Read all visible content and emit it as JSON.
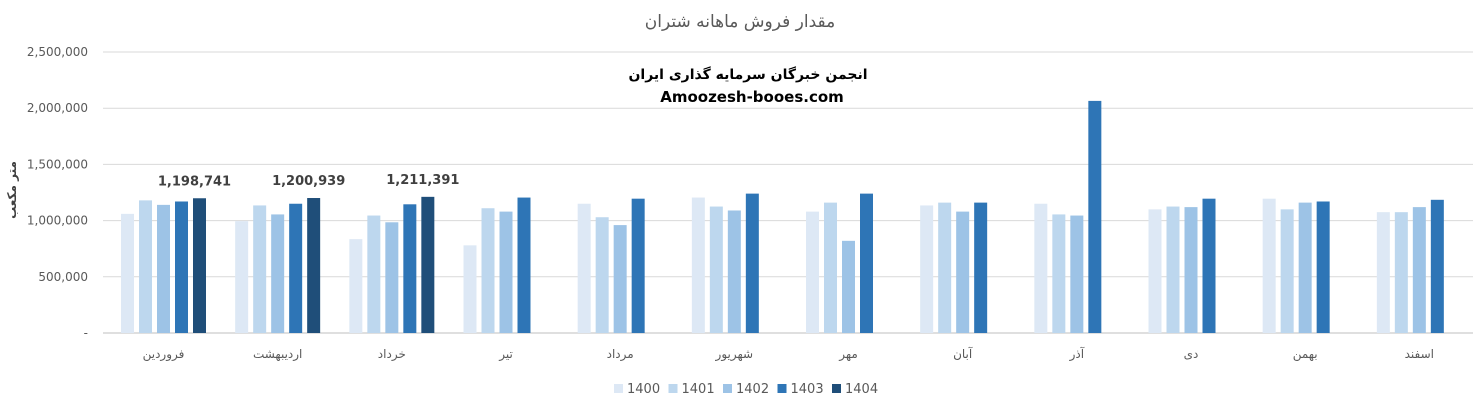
{
  "chart_data": {
    "type": "bar",
    "title": "مقدار فروش ماهانه شتران",
    "ylabel": "متر مکعب",
    "xlabel": "",
    "ylim": [
      0,
      2500000
    ],
    "yticks": [
      "-",
      "500,000",
      "1,000,000",
      "1,500,000",
      "2,000,000",
      "2,500,000"
    ],
    "ytick_values": [
      0,
      500000,
      1000000,
      1500000,
      2000000,
      2500000
    ],
    "grid": true,
    "legend_position": "bottom",
    "categories": [
      "فروردین",
      "اردیبهشت",
      "خرداد",
      "تیر",
      "مرداد",
      "شهریور",
      "مهر",
      "آبان",
      "آذر",
      "دی",
      "بهمن",
      "اسفند"
    ],
    "series": [
      {
        "name": "1400",
        "color": "#dde8f5",
        "values": [
          1060000,
          995000,
          835000,
          780000,
          1150000,
          1205000,
          1080000,
          1135000,
          1150000,
          1100000,
          1195000,
          1075000
        ]
      },
      {
        "name": "1401",
        "color": "#bdd7ee",
        "values": [
          1180000,
          1135000,
          1045000,
          1110000,
          1030000,
          1125000,
          1160000,
          1160000,
          1055000,
          1125000,
          1100000,
          1075000
        ]
      },
      {
        "name": "1402",
        "color": "#9dc3e6",
        "values": [
          1140000,
          1055000,
          985000,
          1080000,
          960000,
          1090000,
          820000,
          1080000,
          1045000,
          1120000,
          1160000,
          1120000
        ]
      },
      {
        "name": "1403",
        "color": "#2e75b6",
        "values": [
          1170000,
          1150000,
          1145000,
          1205000,
          1195000,
          1240000,
          1240000,
          1160000,
          2065000,
          1195000,
          1170000,
          1185000
        ]
      },
      {
        "name": "1404",
        "color": "#1f4e79",
        "values": [
          1198741,
          1200939,
          1211391,
          null,
          null,
          null,
          null,
          null,
          null,
          null,
          null,
          null
        ]
      }
    ],
    "data_labels": [
      {
        "series": "1404",
        "category_index": 0,
        "text": "1,198,741"
      },
      {
        "series": "1404",
        "category_index": 1,
        "text": "1,200,939"
      },
      {
        "series": "1404",
        "category_index": 2,
        "text": "1,211,391"
      }
    ],
    "watermark": {
      "line1": "انجمن خبرگان سرمایه گذاری ایران",
      "line2": "Amoozesh-booes.com"
    }
  }
}
